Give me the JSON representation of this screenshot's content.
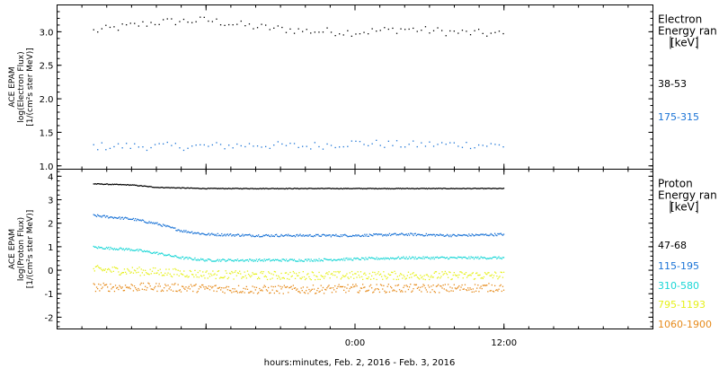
{
  "xlabel": "hours:minutes, Feb.  2, 2016 - Feb.  3, 2016",
  "x_ticks": [
    "0:00",
    "12:00"
  ],
  "colors": {
    "black": "#000000",
    "blue": "#1a73d6",
    "cyan": "#1ad6d6",
    "yellow": "#e6f01a",
    "orange": "#e68a1a"
  },
  "chart_data": [
    {
      "type": "scatter",
      "panel": "electron",
      "ylabel_lines": [
        "ACE EPAM",
        "log(Electron Flux)",
        "[1/(cm²s ster MeV)]"
      ],
      "yticks": [
        "1.0",
        "1.5",
        "2.0",
        "2.5",
        "3.0"
      ],
      "ylim": [
        0.95,
        3.4
      ],
      "xlim_hours": [
        -24,
        24
      ],
      "legend_title_lines": [
        "Electron",
        "Energy ran",
        "[keV]"
      ],
      "series": [
        {
          "name": "38-53",
          "color": "#000000",
          "x_hours": [
            -21.1,
            -16,
            -12,
            -8,
            -4,
            0,
            4,
            8,
            12
          ],
          "y": [
            3.02,
            3.15,
            3.18,
            3.08,
            3.02,
            3.0,
            3.05,
            3.0,
            2.97
          ]
        },
        {
          "name": "175-315",
          "color": "#1a73d6",
          "x_hours": [
            -21.1,
            -16,
            -12,
            -8,
            -4,
            0,
            4,
            8,
            12
          ],
          "y": [
            1.3,
            1.3,
            1.3,
            1.32,
            1.3,
            1.35,
            1.32,
            1.33,
            1.31
          ]
        }
      ]
    },
    {
      "type": "scatter",
      "panel": "proton",
      "ylabel_lines": [
        "ACE EPAM",
        "log(Proton Flux)",
        "[1/(cm²s ster MeV)]"
      ],
      "yticks": [
        "-2",
        "-1",
        "0",
        "1",
        "2",
        "3",
        "4"
      ],
      "ylim": [
        -2.5,
        4.3
      ],
      "xlim_hours": [
        -24,
        24
      ],
      "legend_title_lines": [
        "Proton",
        "Energy ran",
        "[keV]"
      ],
      "series": [
        {
          "name": "47-68",
          "color": "#000000",
          "x_hours": [
            -21.1,
            -18,
            -16,
            -12,
            -8,
            -4,
            0,
            4,
            8,
            12
          ],
          "y": [
            3.7,
            3.65,
            3.55,
            3.5,
            3.5,
            3.5,
            3.5,
            3.5,
            3.5,
            3.5
          ]
        },
        {
          "name": "115-195",
          "color": "#1a73d6",
          "x_hours": [
            -21.1,
            -18,
            -16,
            -14,
            -12,
            -8,
            -4,
            0,
            4,
            8,
            12
          ],
          "y": [
            2.35,
            2.2,
            2.0,
            1.7,
            1.55,
            1.5,
            1.5,
            1.5,
            1.55,
            1.5,
            1.55
          ]
        },
        {
          "name": "310-580",
          "color": "#1ad6d6",
          "x_hours": [
            -21.1,
            -18,
            -16,
            -14,
            -12,
            -8,
            -4,
            0,
            4,
            8,
            12
          ],
          "y": [
            1.0,
            0.9,
            0.75,
            0.55,
            0.45,
            0.45,
            0.45,
            0.5,
            0.55,
            0.55,
            0.55
          ]
        },
        {
          "name": "795-1193",
          "color": "#e6f01a",
          "x_hours": [
            -21.1,
            -16,
            -12,
            -8,
            -4,
            0,
            4,
            8,
            12
          ],
          "y": [
            0.05,
            -0.05,
            -0.15,
            -0.2,
            -0.2,
            -0.2,
            -0.2,
            -0.2,
            -0.2
          ]
        },
        {
          "name": "1060-1900",
          "color": "#e68a1a",
          "x_hours": [
            -21.1,
            -16,
            -12,
            -8,
            -4,
            0,
            4,
            8,
            12
          ],
          "y": [
            -0.7,
            -0.7,
            -0.75,
            -0.8,
            -0.8,
            -0.75,
            -0.75,
            -0.75,
            -0.7
          ]
        }
      ]
    }
  ]
}
